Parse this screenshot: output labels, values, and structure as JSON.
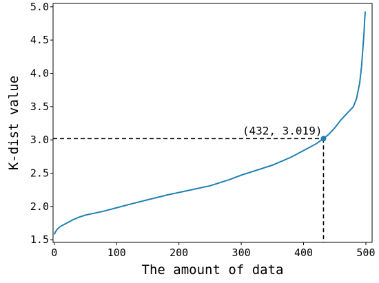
{
  "chart_data": {
    "type": "line",
    "title": "",
    "xlabel": "The amount of data",
    "ylabel": "K-dist value",
    "xlim": [
      -2,
      510
    ],
    "ylim": [
      1.46,
      5.05
    ],
    "x_ticks": [
      0,
      100,
      200,
      300,
      400,
      500
    ],
    "y_ticks": [
      1.5,
      2.0,
      2.5,
      3.0,
      3.5,
      4.0,
      4.5,
      5.0
    ],
    "x_tick_labels": [
      "0",
      "100",
      "200",
      "300",
      "400",
      "500"
    ],
    "y_tick_labels": [
      "1.5",
      "2.0",
      "2.5",
      "3.0",
      "3.5",
      "4.0",
      "4.5",
      "5.0"
    ],
    "grid": false,
    "line_color": "#1f7fb3",
    "series": [
      {
        "x": [
          0,
          2,
          5,
          10,
          20,
          30,
          40,
          50,
          60,
          80,
          100,
          120,
          150,
          180,
          200,
          220,
          250,
          280,
          300,
          320,
          350,
          380,
          400,
          420,
          432,
          440,
          450,
          460,
          470,
          480,
          485,
          490,
          493,
          495,
          497,
          498,
          499
        ],
        "y": [
          1.58,
          1.62,
          1.66,
          1.7,
          1.75,
          1.8,
          1.84,
          1.87,
          1.89,
          1.93,
          1.98,
          2.03,
          2.1,
          2.17,
          2.21,
          2.25,
          2.31,
          2.4,
          2.47,
          2.53,
          2.62,
          2.74,
          2.84,
          2.94,
          3.019,
          3.08,
          3.18,
          3.3,
          3.4,
          3.5,
          3.62,
          3.85,
          4.1,
          4.35,
          4.6,
          4.8,
          4.93
        ]
      }
    ],
    "annotations": [
      {
        "label": "(432, 3.019)",
        "x": 432,
        "y": 3.019,
        "marker_color": "#1f7fb3",
        "guide_style": "dashed"
      }
    ]
  }
}
